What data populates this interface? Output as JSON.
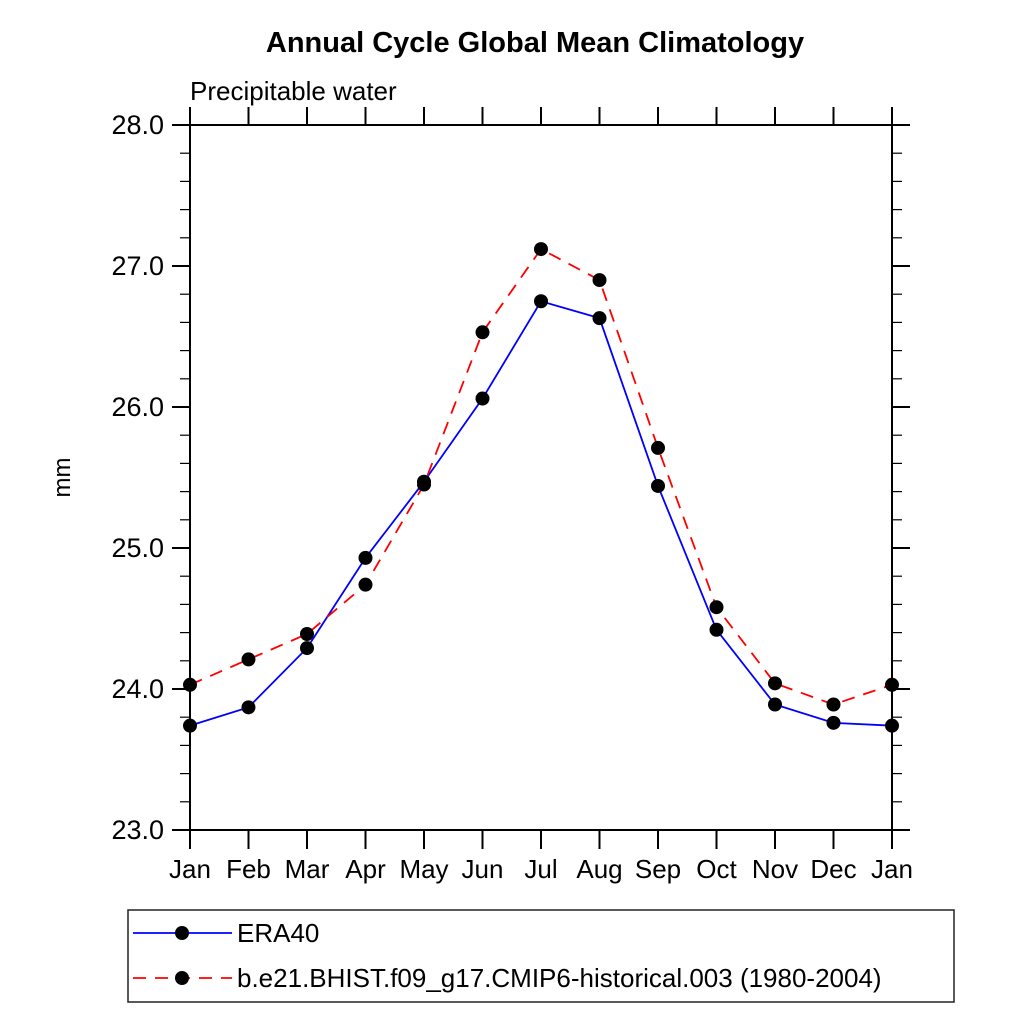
{
  "chart_data": {
    "type": "line",
    "title": "Annual Cycle Global Mean Climatology",
    "subtitle": "Precipitable water",
    "ylabel": "mm",
    "xlabel": "",
    "x_categories": [
      "Jan",
      "Feb",
      "Mar",
      "Apr",
      "May",
      "Jun",
      "Jul",
      "Aug",
      "Sep",
      "Oct",
      "Nov",
      "Dec",
      "Jan"
    ],
    "ylim": [
      23.0,
      28.0
    ],
    "ytick_labels": [
      "23.0",
      "24.0",
      "25.0",
      "26.0",
      "27.0",
      "28.0"
    ],
    "ytick_values": [
      23.0,
      24.0,
      25.0,
      26.0,
      27.0,
      28.0
    ],
    "y_minor_step": 0.2,
    "grid": false,
    "legend_position": "bottom-left-box",
    "axis_color": "#000000",
    "background_color": "#ffffff",
    "marker_color": "#000000",
    "series": [
      {
        "name": "ERA40",
        "color": "#0000ff",
        "line_style": "solid",
        "marker": "filled-circle",
        "values": [
          23.74,
          23.87,
          24.29,
          24.93,
          25.47,
          26.06,
          26.75,
          26.63,
          25.44,
          24.42,
          23.89,
          23.76,
          23.74
        ]
      },
      {
        "name": "b.e21.BHIST.f09_g17.CMIP6-historical.003 (1980-2004)",
        "color": "#ff0000",
        "line_style": "dashed",
        "marker": "filled-circle",
        "values": [
          24.03,
          24.21,
          24.39,
          24.74,
          25.45,
          26.53,
          27.12,
          26.9,
          25.71,
          24.58,
          24.04,
          23.89,
          24.03
        ]
      }
    ]
  }
}
